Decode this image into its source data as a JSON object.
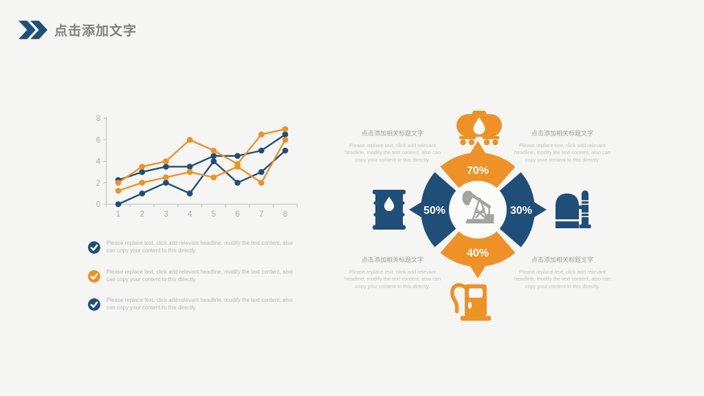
{
  "header": {
    "title": "点击添加文字",
    "icon": "double-chevron-right-icon"
  },
  "colors": {
    "blue": "#1F4E79",
    "orange": "#EE9126",
    "axis_gray": "#c6c6c6",
    "label_gray": "#a8a8a8",
    "title_gray": "#7f7f7f"
  },
  "chart_data": {
    "type": "line",
    "x": [
      1,
      2,
      3,
      4,
      5,
      6,
      7,
      8
    ],
    "series": [
      {
        "name": "blue-series-2",
        "color": "#1F4E79",
        "values": [
          0,
          1,
          2,
          1,
          4,
          2,
          3,
          5
        ]
      },
      {
        "name": "blue-series-1",
        "color": "#1F4E79",
        "values": [
          2.25,
          3,
          3.5,
          3.5,
          4.5,
          4.5,
          5,
          6.5
        ]
      },
      {
        "name": "orange-series-2",
        "color": "#EE9126",
        "values": [
          1.25,
          2,
          2.5,
          3,
          2.5,
          3.5,
          2,
          6
        ]
      },
      {
        "name": "orange-series-1",
        "color": "#EE9126",
        "values": [
          2,
          3.5,
          4,
          6,
          5,
          3.75,
          6.5,
          7
        ]
      }
    ],
    "title": "",
    "xlabel": "",
    "ylabel": "",
    "ylim": [
      0,
      8
    ],
    "yticks": [
      0,
      2,
      4,
      6,
      8
    ],
    "xticks": [
      1,
      2,
      3,
      4,
      5,
      6,
      7,
      8
    ],
    "grid": false,
    "legend": "none",
    "marker": "circle"
  },
  "bullets": {
    "items": [
      {
        "icon": "check-circle-icon",
        "color": "blue",
        "text": "Please replace text, click add relevant headline, modify the text content, also can copy your content to this directly."
      },
      {
        "icon": "check-circle-icon",
        "color": "orange",
        "text": "Please replace text, click add relevant headline, modify the text content, also can copy your content to this directly."
      },
      {
        "icon": "check-circle-icon",
        "color": "blue",
        "text": "Please replace text, click add relevant headline, modify the text content, also can copy your content to this directly."
      }
    ]
  },
  "diagram": {
    "center_icon": "oil-pump-jack-icon",
    "segments": [
      {
        "position": "top",
        "value": "70%",
        "color": "orange",
        "icon": "oil-tanker-icon"
      },
      {
        "position": "right",
        "value": "30%",
        "color": "blue",
        "icon": "refinery-tank-icon"
      },
      {
        "position": "bottom",
        "value": "40%",
        "color": "orange",
        "icon": "fuel-pump-icon"
      },
      {
        "position": "left",
        "value": "50%",
        "color": "blue",
        "icon": "oil-barrel-icon"
      }
    ],
    "callouts": [
      {
        "position": "top-left",
        "heading": "点击添加相关标题文字",
        "body": "Please replace text, click add relevant headline, modify the text content, also can copy your content to this directly."
      },
      {
        "position": "top-right",
        "heading": "点击添加相关标题文字",
        "body": "Please replace text, click add relevant headline, modify the text content, also can copy your content to this directly."
      },
      {
        "position": "bottom-left",
        "heading": "点击添加相关标题文字",
        "body": "Please replace text, click add relevant headline, modify the text content, also can copy your content to this directly."
      },
      {
        "position": "bottom-right",
        "heading": "点击添加相关标题文字",
        "body": "Please replace text, click add relevant headline, modify the text content, also can copy your content to this directly."
      }
    ]
  }
}
